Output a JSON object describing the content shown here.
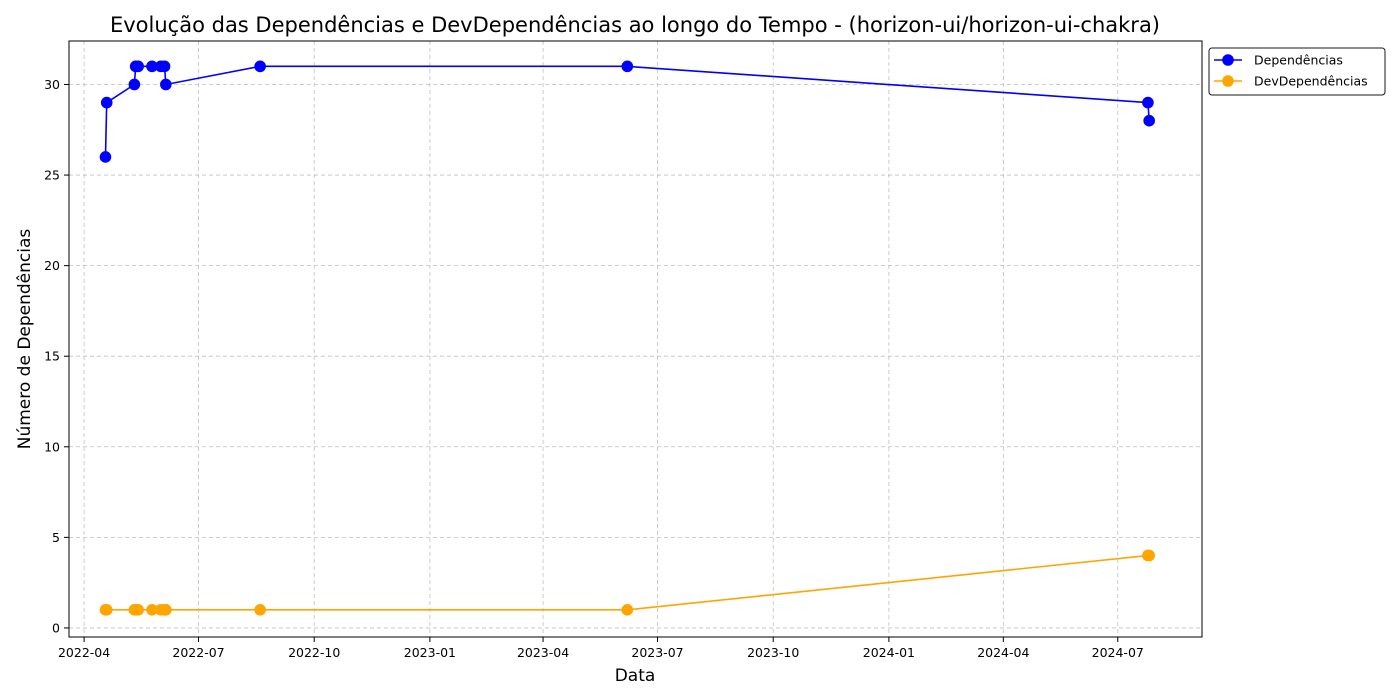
{
  "chart_data": {
    "type": "line",
    "title": "Evolução das Dependências e DevDependências ao longo do Tempo - (horizon-ui/horizon-ui-chakra)",
    "xlabel": "Data",
    "ylabel": "Número de Dependências",
    "x_type": "date",
    "xlim": [
      "2022-03-20",
      "2024-09-06"
    ],
    "ylim": [
      -0.5,
      32.4
    ],
    "x_ticks": [
      "2022-04",
      "2022-07",
      "2022-10",
      "2023-01",
      "2023-04",
      "2023-07",
      "2023-10",
      "2024-01",
      "2024-04",
      "2024-07"
    ],
    "y_ticks": [
      0,
      5,
      10,
      15,
      20,
      25,
      30
    ],
    "grid": true,
    "legend_position": "outside-top-right",
    "x": [
      "2022-04-18",
      "2022-04-19",
      "2022-05-11",
      "2022-05-12",
      "2022-05-14",
      "2022-05-25",
      "2022-06-01",
      "2022-06-04",
      "2022-06-05",
      "2022-08-19",
      "2023-06-07",
      "2024-07-25",
      "2024-07-26"
    ],
    "series": [
      {
        "name": "Dependências",
        "color": "#0000ff",
        "values": [
          26,
          29,
          30,
          31,
          31,
          31,
          31,
          31,
          30,
          31,
          31,
          29,
          28
        ]
      },
      {
        "name": "DevDependências",
        "color": "#ffa500",
        "values": [
          1,
          1,
          1,
          1,
          1,
          1,
          1,
          1,
          1,
          1,
          1,
          4,
          4
        ]
      }
    ]
  }
}
